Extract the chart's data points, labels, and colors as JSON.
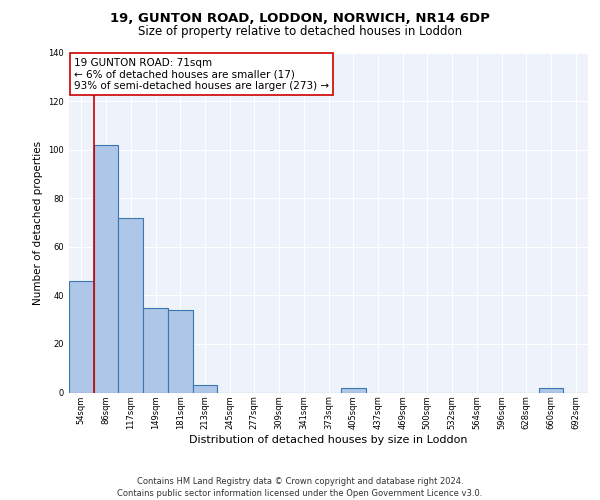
{
  "title1": "19, GUNTON ROAD, LODDON, NORWICH, NR14 6DP",
  "title2": "Size of property relative to detached houses in Loddon",
  "xlabel": "Distribution of detached houses by size in Loddon",
  "ylabel": "Number of detached properties",
  "footer1": "Contains HM Land Registry data © Crown copyright and database right 2024.",
  "footer2": "Contains public sector information licensed under the Open Government Licence v3.0.",
  "annotation_line1": "19 GUNTON ROAD: 71sqm",
  "annotation_line2": "← 6% of detached houses are smaller (17)",
  "annotation_line3": "93% of semi-detached houses are larger (273) →",
  "bar_categories": [
    "54sqm",
    "86sqm",
    "117sqm",
    "149sqm",
    "181sqm",
    "213sqm",
    "245sqm",
    "277sqm",
    "309sqm",
    "341sqm",
    "373sqm",
    "405sqm",
    "437sqm",
    "469sqm",
    "500sqm",
    "532sqm",
    "564sqm",
    "596sqm",
    "628sqm",
    "660sqm",
    "692sqm"
  ],
  "bar_values": [
    46,
    102,
    72,
    35,
    34,
    3,
    0,
    0,
    0,
    0,
    0,
    2,
    0,
    0,
    0,
    0,
    0,
    0,
    0,
    2,
    0
  ],
  "bar_color": "#aec6e8",
  "bar_edge_color": "#3a76b0",
  "bar_linewidth": 0.8,
  "ylim": [
    0,
    140
  ],
  "yticks": [
    0,
    20,
    40,
    60,
    80,
    100,
    120,
    140
  ],
  "bg_color": "#eef3fb",
  "grid_color": "#ffffff",
  "annotation_box_color": "#ffffff",
  "annotation_box_edge": "#cc0000",
  "red_line_color": "#cc0000",
  "title1_fontsize": 9.5,
  "title2_fontsize": 8.5,
  "ylabel_fontsize": 7.5,
  "xlabel_fontsize": 8,
  "tick_fontsize": 6,
  "annotation_fontsize": 7.5,
  "footer_fontsize": 6
}
